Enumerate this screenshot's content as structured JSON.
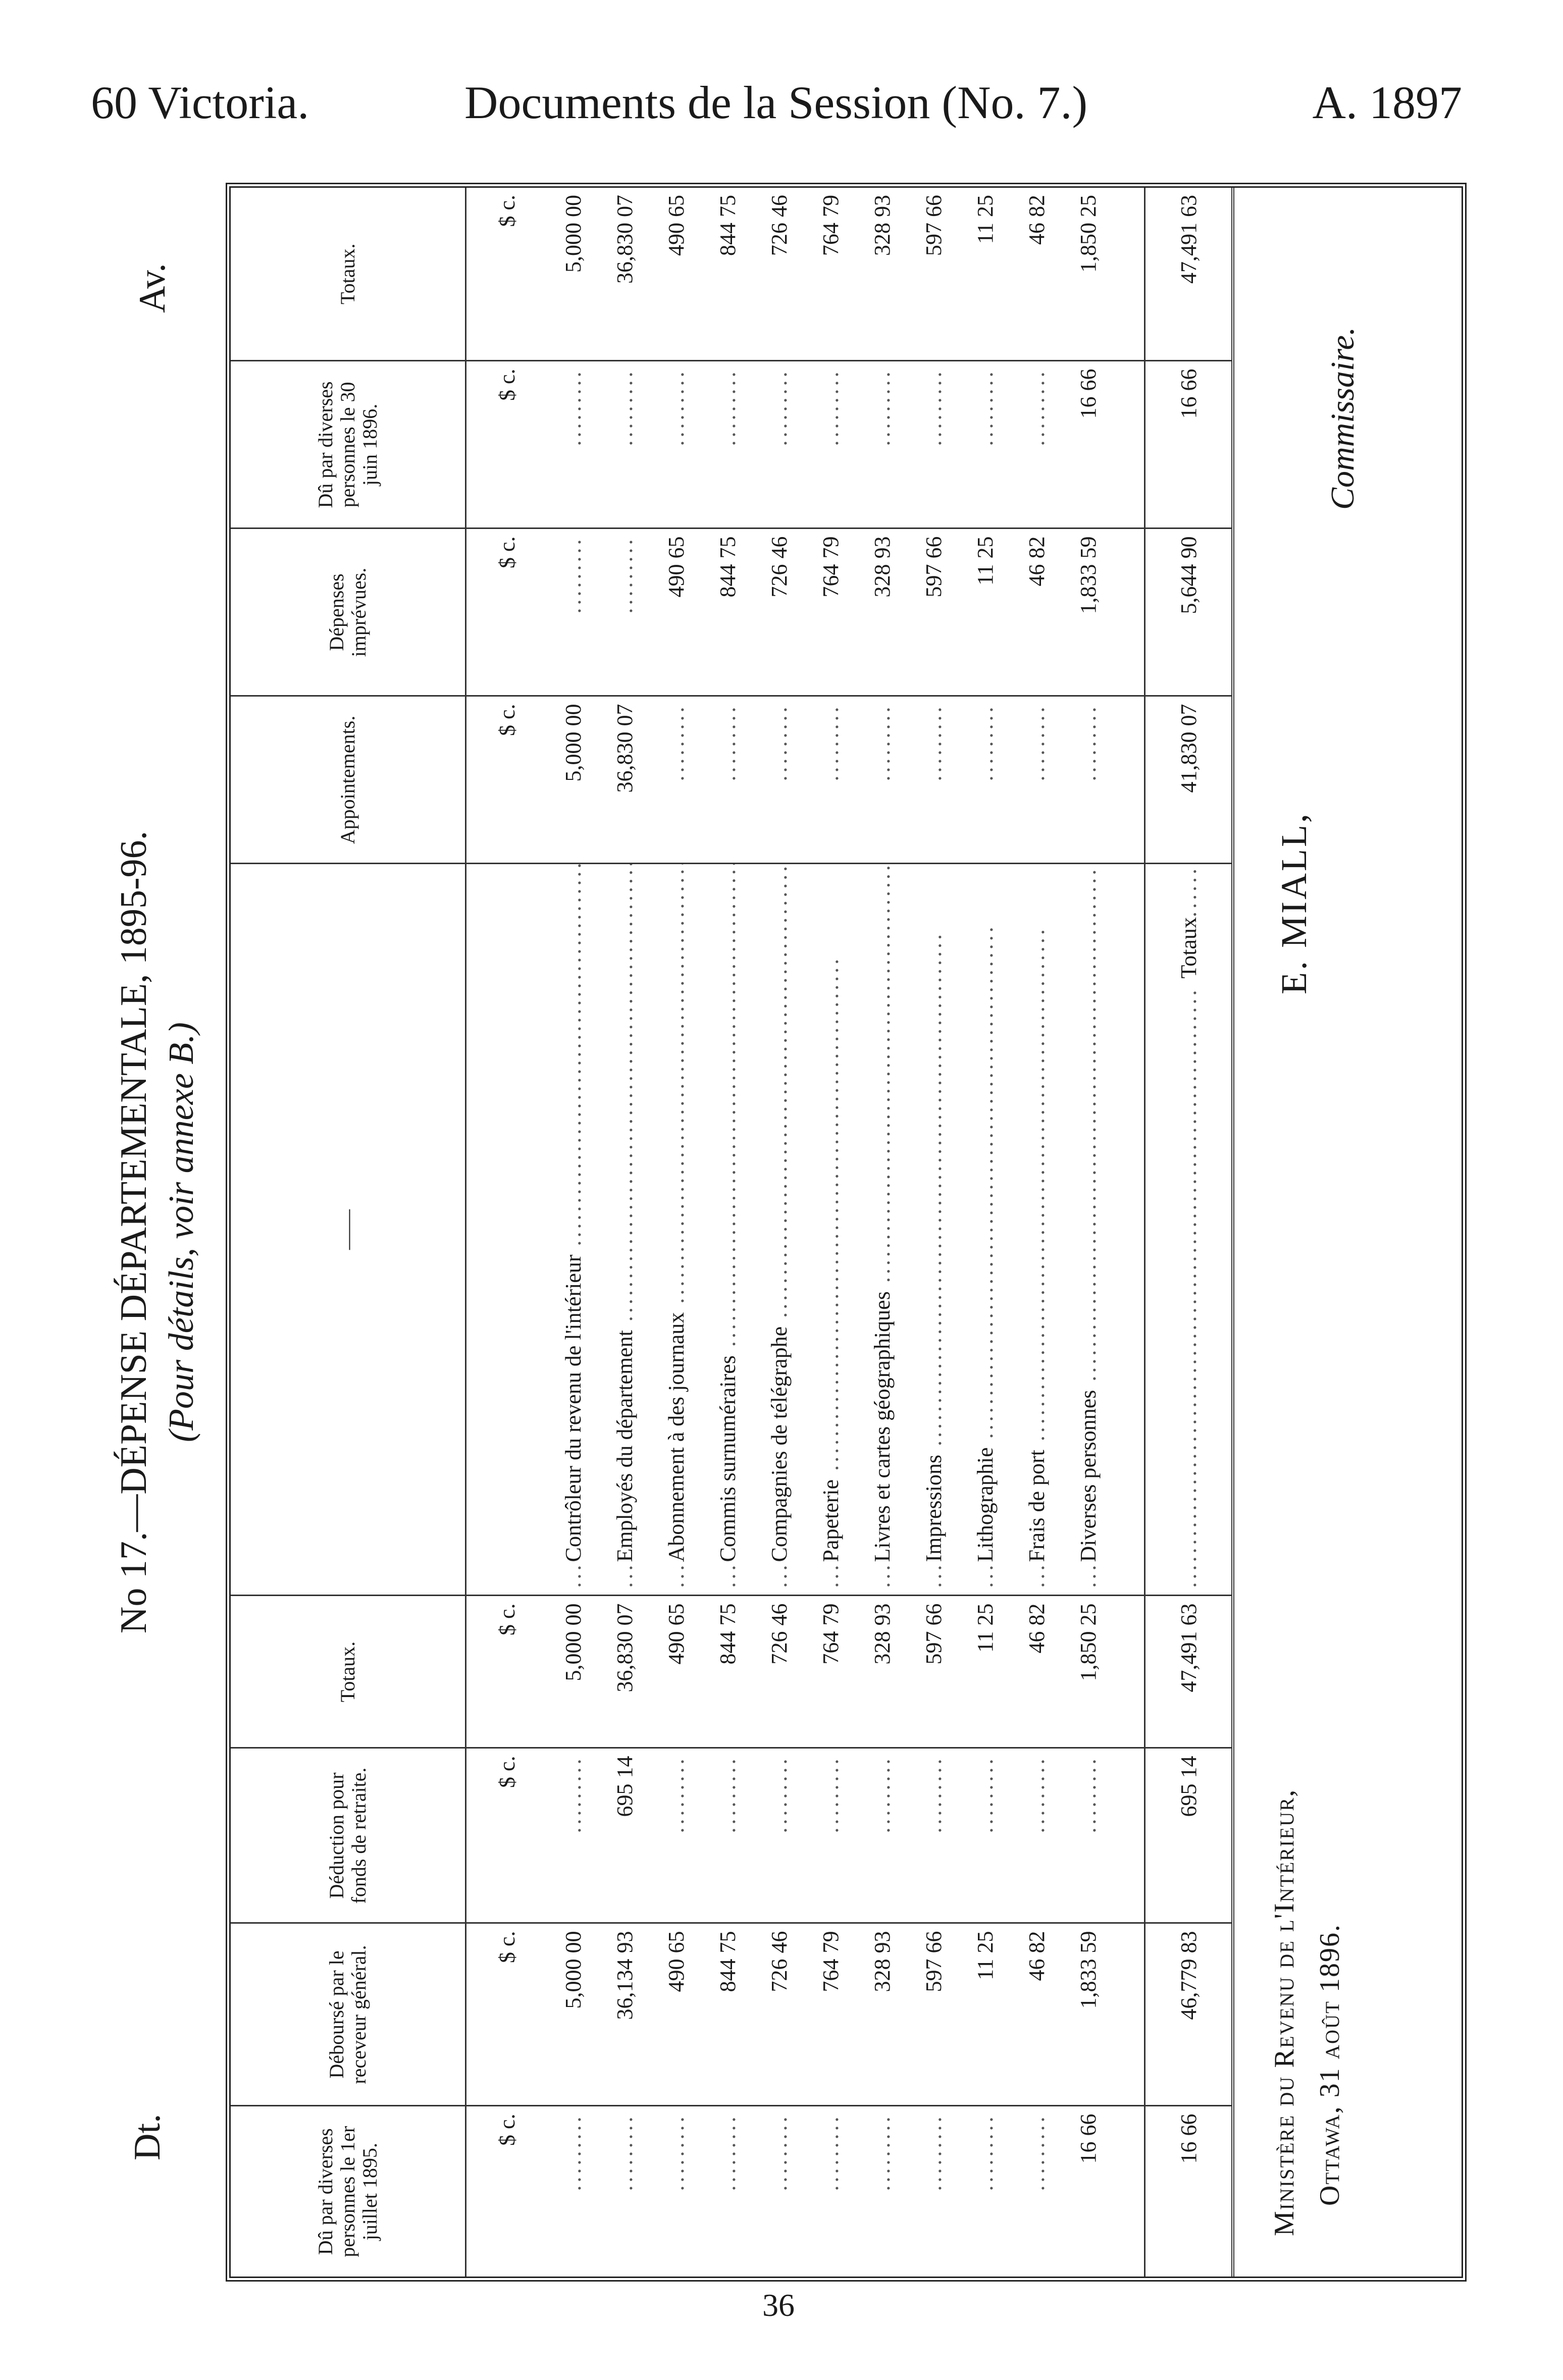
{
  "header": {
    "left": "60 Victoria.",
    "center": "Documents de la Session (No. 7.)",
    "right": "A. 1897"
  },
  "title": "No 17.—DÉPENSE DÉPARTEMENTALE, 1895-96.",
  "subtitle": "(Pour détails, voir annexe B.)",
  "dt": "Dt.",
  "av": "Av.",
  "columns": [
    "Dû par diverses personnes le 1er juillet 1895.",
    "Déboursé par le receveur général.",
    "Déduction pour fonds de retraite.",
    "Totaux.",
    "——",
    "Appointements.",
    "Dépenses imprévues.",
    "Dû par diverses personnes le 30 juin 1896.",
    "Totaux."
  ],
  "unit_label": "$ c.",
  "rows": [
    {
      "description": "Contrôleur du revenu de l'intérieur",
      "values": [
        "",
        "5,000 00",
        "",
        "5,000 00",
        "5,000 00",
        "",
        "",
        "5,000 00"
      ]
    },
    {
      "description": "Employés du département",
      "values": [
        "",
        "36,134 93",
        "695 14",
        "36,830 07",
        "36,830 07",
        "",
        "",
        "36,830 07"
      ]
    },
    {
      "description": "Abonnement à des journaux",
      "values": [
        "",
        "490 65",
        "",
        "490 65",
        "",
        "490 65",
        "",
        "490 65"
      ]
    },
    {
      "description": "Commis surnuméraires",
      "values": [
        "",
        "844 75",
        "",
        "844 75",
        "",
        "844 75",
        "",
        "844 75"
      ]
    },
    {
      "description": "Compagnies de télégraphe",
      "values": [
        "",
        "726 46",
        "",
        "726 46",
        "",
        "726 46",
        "",
        "726 46"
      ]
    },
    {
      "description": "Papeterie",
      "values": [
        "",
        "764 79",
        "",
        "764 79",
        "",
        "764 79",
        "",
        "764 79"
      ]
    },
    {
      "description": "Livres et cartes géographiques",
      "values": [
        "",
        "328 93",
        "",
        "328 93",
        "",
        "328 93",
        "",
        "328 93"
      ]
    },
    {
      "description": "Impressions",
      "values": [
        "",
        "597 66",
        "",
        "597 66",
        "",
        "597 66",
        "",
        "597 66"
      ]
    },
    {
      "description": "Lithographie",
      "values": [
        "",
        "11 25",
        "",
        "11 25",
        "",
        "11 25",
        "",
        "11 25"
      ]
    },
    {
      "description": "Frais de port",
      "values": [
        "",
        "46 82",
        "",
        "46 82",
        "",
        "46 82",
        "",
        "46 82"
      ]
    },
    {
      "description": "Diverses personnes",
      "values": [
        "16 66",
        "1,833 59",
        "",
        "1,850 25",
        "",
        "1,833 59",
        "16 66",
        "1,850 25"
      ]
    }
  ],
  "totals": {
    "label": "Totaux",
    "values": [
      "16 66",
      "46,779 83",
      "695 14",
      "47,491 63",
      "41,830 07",
      "5,644 90",
      "16 66",
      "47,491 63"
    ]
  },
  "signature": {
    "ministry": "Ministère du Revenu de l'Intérieur,",
    "place_date": "Ottawa, 31 août 1896.",
    "name": "E. MIALL,",
    "role": "Commissaire."
  },
  "page_number": "36"
}
